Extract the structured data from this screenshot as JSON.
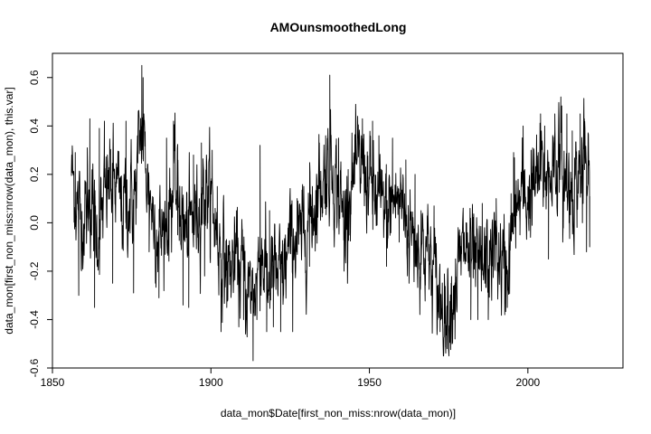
{
  "chart_data": {
    "type": "line",
    "title": "AMOunsmoothedLong",
    "xlabel": "data_mon$Date[first_non_miss:nrow(data_mon)]",
    "ylabel": "data_mon[first_non_miss:nrow(data_mon), this.var]",
    "xlim": [
      1850,
      2030
    ],
    "ylim": [
      -0.6,
      0.7
    ],
    "x_ticks": [
      1850,
      1900,
      1950,
      2000
    ],
    "x_tick_labels": [
      "1850",
      "1900",
      "1950",
      "2000"
    ],
    "y_ticks": [
      -0.6,
      -0.4,
      -0.2,
      0.0,
      0.2,
      0.4,
      0.6
    ],
    "y_tick_labels": [
      "-0.6",
      "-0.4",
      "-0.2",
      "0.0",
      "0.2",
      "0.4",
      "0.6"
    ],
    "grid": false,
    "legend": "none",
    "line_color": "#000000",
    "x_start": 1856.0,
    "x_end": 2019.5,
    "anchors": [
      [
        1856.0,
        0.22
      ],
      [
        1858.0,
        0.05
      ],
      [
        1860.0,
        0.02
      ],
      [
        1862.0,
        0.1
      ],
      [
        1864.0,
        -0.05
      ],
      [
        1866.0,
        0.05
      ],
      [
        1868.0,
        0.18
      ],
      [
        1870.0,
        0.15
      ],
      [
        1872.0,
        0.05
      ],
      [
        1874.0,
        0.1
      ],
      [
        1876.0,
        0.1
      ],
      [
        1878.0,
        0.4
      ],
      [
        1880.0,
        0.18
      ],
      [
        1882.0,
        0.02
      ],
      [
        1884.0,
        -0.05
      ],
      [
        1886.0,
        0.0
      ],
      [
        1888.0,
        0.15
      ],
      [
        1890.0,
        0.1
      ],
      [
        1892.0,
        -0.05
      ],
      [
        1894.0,
        0.0
      ],
      [
        1896.0,
        0.05
      ],
      [
        1898.0,
        0.15
      ],
      [
        1900.0,
        0.1
      ],
      [
        1902.0,
        -0.05
      ],
      [
        1904.0,
        -0.15
      ],
      [
        1906.0,
        -0.2
      ],
      [
        1908.0,
        -0.15
      ],
      [
        1910.0,
        -0.2
      ],
      [
        1912.0,
        -0.3
      ],
      [
        1914.0,
        -0.25
      ],
      [
        1916.0,
        -0.1
      ],
      [
        1918.0,
        -0.25
      ],
      [
        1920.0,
        -0.2
      ],
      [
        1922.0,
        -0.25
      ],
      [
        1924.0,
        -0.15
      ],
      [
        1926.0,
        -0.05
      ],
      [
        1928.0,
        -0.1
      ],
      [
        1930.0,
        0.0
      ],
      [
        1932.0,
        0.05
      ],
      [
        1934.0,
        0.15
      ],
      [
        1936.0,
        0.2
      ],
      [
        1938.0,
        0.25
      ],
      [
        1940.0,
        0.15
      ],
      [
        1942.0,
        0.0
      ],
      [
        1944.0,
        0.15
      ],
      [
        1946.0,
        0.2
      ],
      [
        1948.0,
        0.25
      ],
      [
        1950.0,
        0.15
      ],
      [
        1952.0,
        0.1
      ],
      [
        1954.0,
        0.05
      ],
      [
        1956.0,
        0.05
      ],
      [
        1958.0,
        0.1
      ],
      [
        1960.0,
        0.1
      ],
      [
        1962.0,
        0.0
      ],
      [
        1964.0,
        -0.05
      ],
      [
        1966.0,
        -0.1
      ],
      [
        1968.0,
        -0.1
      ],
      [
        1970.0,
        -0.2
      ],
      [
        1972.0,
        -0.3
      ],
      [
        1974.0,
        -0.35
      ],
      [
        1976.0,
        -0.3
      ],
      [
        1978.0,
        -0.2
      ],
      [
        1980.0,
        -0.1
      ],
      [
        1982.0,
        -0.15
      ],
      [
        1984.0,
        -0.2
      ],
      [
        1986.0,
        -0.2
      ],
      [
        1988.0,
        -0.15
      ],
      [
        1990.0,
        -0.1
      ],
      [
        1992.0,
        -0.2
      ],
      [
        1994.0,
        -0.15
      ],
      [
        1996.0,
        0.05
      ],
      [
        1998.0,
        0.1
      ],
      [
        2000.0,
        0.1
      ],
      [
        2002.0,
        0.15
      ],
      [
        2004.0,
        0.2
      ],
      [
        2006.0,
        0.2
      ],
      [
        2008.0,
        0.25
      ],
      [
        2010.0,
        0.25
      ],
      [
        2012.0,
        0.15
      ],
      [
        2014.0,
        0.15
      ],
      [
        2016.0,
        0.2
      ],
      [
        2018.0,
        0.25
      ],
      [
        2019.5,
        0.1
      ]
    ],
    "peaks": [
      [
        1856.0,
        0.22
      ],
      [
        1857.2,
        0.29
      ],
      [
        1858.3,
        -0.3
      ],
      [
        1861.0,
        0.31
      ],
      [
        1861.8,
        0.43
      ],
      [
        1863.3,
        -0.35
      ],
      [
        1864.8,
        0.39
      ],
      [
        1866.4,
        0.42
      ],
      [
        1869.0,
        -0.25
      ],
      [
        1873.2,
        0.42
      ],
      [
        1875.6,
        -0.29
      ],
      [
        1878.2,
        0.65
      ],
      [
        1878.6,
        0.6
      ],
      [
        1880.5,
        -0.12
      ],
      [
        1883.6,
        -0.31
      ],
      [
        1886.0,
        0.35
      ],
      [
        1888.2,
        0.42
      ],
      [
        1889.5,
        -0.05
      ],
      [
        1891.2,
        -0.34
      ],
      [
        1893.0,
        -0.35
      ],
      [
        1894.5,
        0.28
      ],
      [
        1897.0,
        0.33
      ],
      [
        1898.0,
        -0.22
      ],
      [
        1900.4,
        0.3
      ],
      [
        1902.0,
        0.15
      ],
      [
        1903.2,
        -0.45
      ],
      [
        1905.0,
        -0.35
      ],
      [
        1906.0,
        -0.12
      ],
      [
        1908.8,
        -0.43
      ],
      [
        1910.3,
        -0.4
      ],
      [
        1911.2,
        -0.4
      ],
      [
        1913.3,
        -0.57
      ],
      [
        1914.5,
        -0.4
      ],
      [
        1915.5,
        0.32
      ],
      [
        1917.6,
        -0.45
      ],
      [
        1918.5,
        0.05
      ],
      [
        1919.7,
        -0.43
      ],
      [
        1922.0,
        -0.45
      ],
      [
        1923.5,
        -0.05
      ],
      [
        1925.8,
        -0.45
      ],
      [
        1927.2,
        0.1
      ],
      [
        1929.3,
        0.15
      ],
      [
        1931.1,
        -0.18
      ],
      [
        1932.0,
        0.15
      ],
      [
        1933.2,
        -0.05
      ],
      [
        1934.2,
        0.33
      ],
      [
        1936.2,
        0.36
      ],
      [
        1937.5,
        0.61
      ],
      [
        1938.8,
        -0.03
      ],
      [
        1940.3,
        0.35
      ],
      [
        1942.0,
        -0.2
      ],
      [
        1943.3,
        0.22
      ],
      [
        1946.3,
        0.44
      ],
      [
        1947.8,
        0.43
      ],
      [
        1949.4,
        0.15
      ],
      [
        1951.0,
        0.42
      ],
      [
        1953.0,
        0.36
      ],
      [
        1955.4,
        -0.18
      ],
      [
        1957.3,
        0.35
      ],
      [
        1959.4,
        -0.08
      ],
      [
        1961.5,
        0.26
      ],
      [
        1962.5,
        -0.25
      ],
      [
        1964.4,
        0.2
      ],
      [
        1966.3,
        0.05
      ],
      [
        1967.6,
        -0.15
      ],
      [
        1969.5,
        -0.3
      ],
      [
        1970.4,
        0.07
      ],
      [
        1971.5,
        -0.4
      ],
      [
        1972.3,
        -0.45
      ],
      [
        1974.0,
        -0.5
      ],
      [
        1974.5,
        -0.52
      ],
      [
        1975.8,
        -0.25
      ],
      [
        1977.0,
        -0.48
      ],
      [
        1978.5,
        -0.15
      ],
      [
        1980.5,
        0.0
      ],
      [
        1982.0,
        -0.4
      ],
      [
        1983.0,
        -0.05
      ],
      [
        1984.2,
        -0.4
      ],
      [
        1985.6,
        0.08
      ],
      [
        1987.5,
        -0.4
      ],
      [
        1988.4,
        -0.12
      ],
      [
        1990.0,
        0.1
      ],
      [
        1990.8,
        -0.2
      ],
      [
        1992.7,
        -0.38
      ],
      [
        1993.5,
        -0.35
      ],
      [
        1994.7,
        0.12
      ],
      [
        1995.5,
        0.29
      ],
      [
        1997.5,
        -0.05
      ],
      [
        1998.5,
        0.4
      ],
      [
        2000.0,
        0.15
      ],
      [
        2001.0,
        0.3
      ],
      [
        2002.8,
        0.23
      ],
      [
        2004.0,
        0.45
      ],
      [
        2005.3,
        0.4
      ],
      [
        2006.5,
        -0.15
      ],
      [
        2008.5,
        0.45
      ],
      [
        2010.4,
        0.52
      ],
      [
        2011.0,
        -0.08
      ],
      [
        2012.3,
        0.45
      ],
      [
        2013.0,
        0.0
      ],
      [
        2014.0,
        0.38
      ],
      [
        2015.5,
        0.1
      ],
      [
        2016.5,
        0.45
      ],
      [
        2017.2,
        0.0
      ],
      [
        2017.8,
        0.43
      ],
      [
        2018.5,
        -0.12
      ],
      [
        2019.0,
        0.16
      ],
      [
        2019.5,
        0.11
      ]
    ]
  }
}
